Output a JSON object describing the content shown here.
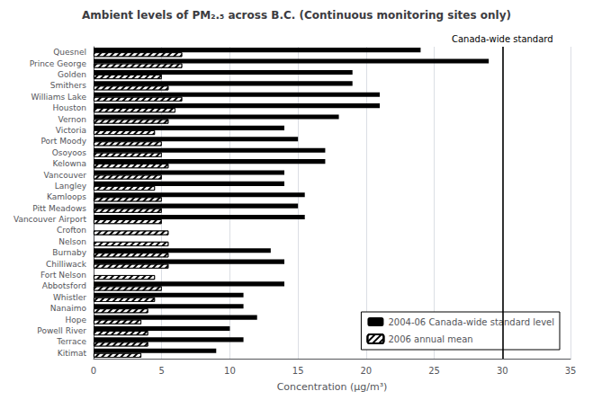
{
  "chart_data": {
    "type": "bar",
    "orientation": "horizontal",
    "title": "Ambient levels of PM₂.₅ across B.C. (Continuous monitoring sites only)",
    "xlabel": "Concentration (μg/m³)",
    "categories": [
      "Quesnel",
      "Prince George",
      "Golden",
      "Smithers",
      "Williams Lake",
      "Houston",
      "Vernon",
      "Victoria",
      "Port Moody",
      "Osoyoos",
      "Kelowna",
      "Vancouver",
      "Langley",
      "Kamloops",
      "Pitt Meadows",
      "Vancouver Airport",
      "Crofton",
      "Nelson",
      "Burnaby",
      "Chilliwack",
      "Fort Nelson",
      "Abbotsford",
      "Whistler",
      "Nanaimo",
      "Hope",
      "Powell River",
      "Terrace",
      "Kitimat"
    ],
    "series": [
      {
        "name": "2004-06 Canada-wide standard level",
        "color": "#000000",
        "values": [
          24.0,
          29.0,
          19.0,
          19.0,
          21.0,
          21.0,
          18.0,
          14.0,
          15.0,
          17.0,
          17.0,
          14.0,
          14.0,
          15.5,
          15.0,
          15.5,
          0,
          0,
          13.0,
          14.0,
          0,
          14.0,
          11.0,
          11.0,
          12.0,
          10.0,
          11.0,
          9.0
        ]
      },
      {
        "name": "2006 annual mean",
        "color": "#ffffff",
        "values": [
          6.5,
          6.5,
          5.0,
          5.5,
          6.5,
          6.0,
          5.5,
          4.5,
          5.0,
          5.0,
          5.5,
          5.0,
          4.5,
          5.0,
          5.0,
          5.0,
          5.5,
          5.5,
          5.5,
          5.5,
          4.5,
          5.0,
          4.5,
          4.0,
          3.5,
          4.0,
          4.0,
          3.5
        ]
      }
    ],
    "xlim": [
      0,
      35
    ],
    "xticks": [
      0,
      5,
      10,
      15,
      20,
      25,
      30,
      35
    ],
    "grid": true,
    "legend": "lower right",
    "annotations": [
      {
        "text": "Canada-wide standard",
        "x": 30
      }
    ]
  }
}
